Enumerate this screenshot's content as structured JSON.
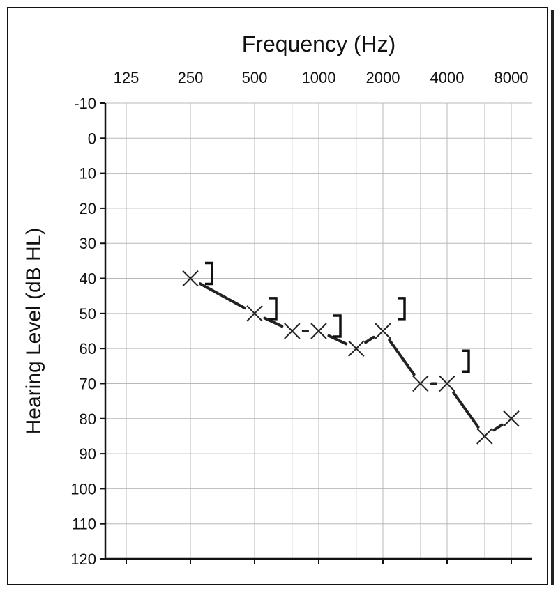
{
  "chart_data": {
    "type": "scatter",
    "title": "Frequency (Hz)",
    "xlabel": "Frequency (Hz)",
    "ylabel": "Hearing Level (dB HL)",
    "x_scale": "log2",
    "x_ticks": [
      125,
      250,
      500,
      1000,
      2000,
      4000,
      8000
    ],
    "x_tick_labels": [
      "125",
      "250",
      "500",
      "1000",
      "2000",
      "4000",
      "8000"
    ],
    "y_ticks": [
      -10,
      0,
      10,
      20,
      30,
      40,
      50,
      60,
      70,
      80,
      90,
      100,
      110,
      120
    ],
    "y_tick_labels": [
      "-10",
      "0",
      "10",
      "20",
      "30",
      "40",
      "50",
      "60",
      "70",
      "80",
      "90",
      "100",
      "110",
      "120"
    ],
    "ylim": [
      -10,
      120
    ],
    "y_inverted": true,
    "grid": true,
    "series": [
      {
        "marker": "×",
        "connected": true,
        "color": "#222222",
        "points": [
          {
            "x": 250,
            "y": 40
          },
          {
            "x": 500,
            "y": 50
          },
          {
            "x": 750,
            "y": 55
          },
          {
            "x": 1000,
            "y": 55
          },
          {
            "x": 1500,
            "y": 60
          },
          {
            "x": 2000,
            "y": 55
          },
          {
            "x": 3000,
            "y": 70
          },
          {
            "x": 4000,
            "y": 70
          },
          {
            "x": 6000,
            "y": 85
          },
          {
            "x": 8000,
            "y": 80
          }
        ]
      },
      {
        "marker": "]",
        "connected": false,
        "color": "#111111",
        "points": [
          {
            "x": 250,
            "y": 40
          },
          {
            "x": 500,
            "y": 50
          },
          {
            "x": 1000,
            "y": 55
          },
          {
            "x": 2000,
            "y": 50
          },
          {
            "x": 4000,
            "y": 65
          }
        ]
      }
    ]
  }
}
